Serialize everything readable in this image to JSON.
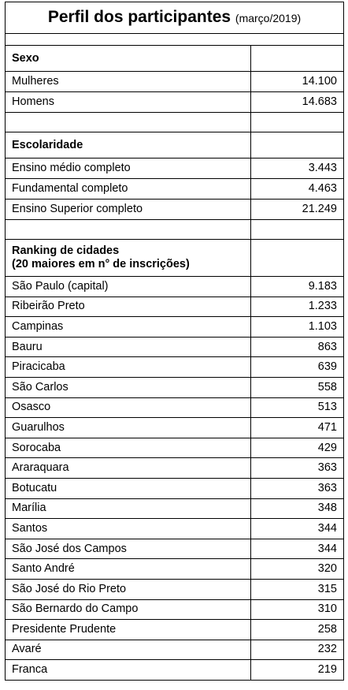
{
  "header": {
    "title": "Perfil dos participantes",
    "subtitle": "(março/2019)"
  },
  "sections": [
    {
      "title": "Sexo",
      "rows": [
        [
          "Mulheres",
          "14.100"
        ],
        [
          "Homens",
          "14.683"
        ]
      ]
    },
    {
      "title": "Escolaridade",
      "rows": [
        [
          "Ensino médio completo",
          "3.443"
        ],
        [
          "Fundamental completo",
          "4.463"
        ],
        [
          "Ensino Superior completo",
          "21.249"
        ]
      ]
    },
    {
      "title": "Ranking de cidades",
      "subtitle": "(20 maiores em n° de inscrições)",
      "rows": [
        [
          "São Paulo (capital)",
          "9.183"
        ],
        [
          "Ribeirão Preto",
          "1.233"
        ],
        [
          "Campinas",
          "1.103"
        ],
        [
          "Bauru",
          "863"
        ],
        [
          "Piracicaba",
          "639"
        ],
        [
          "São Carlos",
          "558"
        ],
        [
          "Osasco",
          "513"
        ],
        [
          "Guarulhos",
          "471"
        ],
        [
          "Sorocaba",
          "429"
        ],
        [
          "Araraquara",
          "363"
        ],
        [
          "Botucatu",
          "363"
        ],
        [
          "Marília",
          "348"
        ],
        [
          "Santos",
          "344"
        ],
        [
          "São José dos Campos",
          "344"
        ],
        [
          "Santo André",
          "320"
        ],
        [
          "São José do Rio Preto",
          "315"
        ],
        [
          "São Bernardo do Campo",
          "310"
        ],
        [
          "Presidente Prudente",
          "258"
        ],
        [
          "Avaré",
          "232"
        ],
        [
          "Franca",
          "219"
        ]
      ]
    }
  ]
}
